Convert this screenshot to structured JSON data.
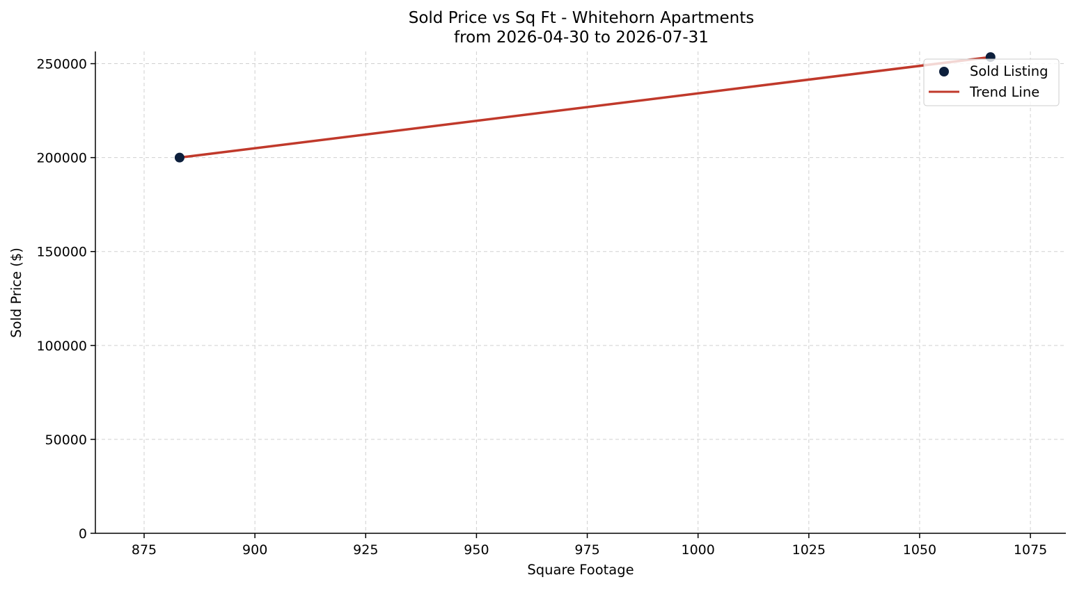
{
  "chart_data": {
    "type": "scatter",
    "title": "Sold Price vs Sq Ft - Whitehorn Apartments",
    "subtitle": "from 2026-04-30 to 2026-07-31",
    "xlabel": "Square Footage",
    "ylabel": "Sold Price ($)",
    "xlim": [
      864,
      1083
    ],
    "ylim": [
      0,
      256500
    ],
    "x_ticks": [
      875,
      900,
      925,
      950,
      975,
      1000,
      1025,
      1050,
      1075
    ],
    "y_ticks": [
      0,
      50000,
      100000,
      150000,
      200000,
      250000
    ],
    "grid": true,
    "legend_position": "top-right",
    "series": [
      {
        "name": "Sold Listing",
        "kind": "scatter",
        "color": "#0d1f3c",
        "points": [
          {
            "x": 883,
            "y": 200000
          },
          {
            "x": 1066,
            "y": 253500
          }
        ]
      },
      {
        "name": "Trend Line",
        "kind": "line",
        "color": "#c0392b",
        "points": [
          {
            "x": 883,
            "y": 200000
          },
          {
            "x": 1066,
            "y": 253500
          }
        ]
      }
    ]
  }
}
